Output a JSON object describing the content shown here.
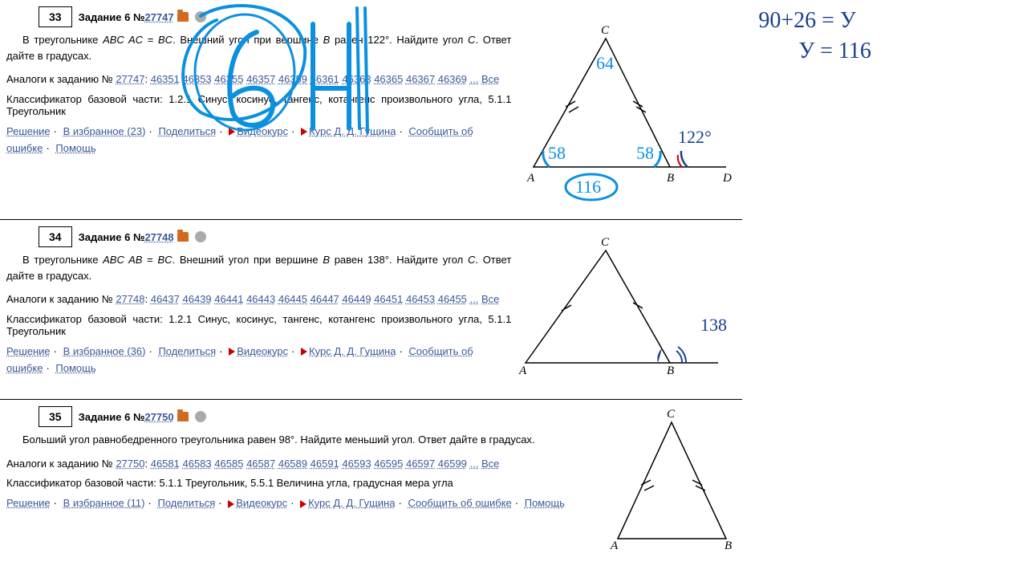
{
  "handwriting_right": {
    "line1": "90+26 = У",
    "line2": "У = 116",
    "color": "#1a3e8c"
  },
  "tasks": [
    {
      "num": "33",
      "label": "Задание 6 № ",
      "id": "27747",
      "text_html": "В треугольнике <i>ABC AC</i> = <i>BC</i>. Внешний угол при вершине <i>B</i> равен 122°. Найдите угол <i>C</i>. Ответ дайте в градусах.",
      "analogs_prefix": "Аналоги к заданию № ",
      "analogs_main": "27747",
      "analogs_list": [
        "46351",
        "46353",
        "46355",
        "46357",
        "46359",
        "46361",
        "46363",
        "46365",
        "46367",
        "46369"
      ],
      "analogs_more": "...",
      "analogs_all": "Все",
      "classif": "Классификатор базовой части: 1.2.1 Синус, косинус, тангенс, котангенс произвольного угла, 5.1.1 Треугольник",
      "links": {
        "solve": "Решение",
        "fav": "В избранное (23)",
        "share": "Поделиться",
        "video": "Видеокурс",
        "course": "Курс Д. Д. Гущина",
        "error": "Сообщить об ошибке",
        "help": "Помощь"
      },
      "figure": {
        "type": "triangle-ext",
        "A": "A",
        "B": "B",
        "C": "C",
        "D": "D",
        "angle_top": "64",
        "angle_left": "58",
        "angle_right": "58",
        "ext_angle": "122°",
        "bottom_sum": "116"
      },
      "scribble": "64"
    },
    {
      "num": "34",
      "label": "Задание 6 № ",
      "id": "27748",
      "text_html": "В треугольнике <i>ABC AB</i> = <i>BC</i>. Внешний угол при вершине <i>B</i> равен 138°. Найдите угол <i>C</i>. Ответ дайте в градусах.",
      "analogs_prefix": "Аналоги к заданию № ",
      "analogs_main": "27748",
      "analogs_list": [
        "46437",
        "46439",
        "46441",
        "46443",
        "46445",
        "46447",
        "46449",
        "46451",
        "46453",
        "46455"
      ],
      "analogs_more": "...",
      "analogs_all": "Все",
      "classif": "Классификатор базовой части: 1.2.1 Синус, косинус, тангенс, котангенс произвольного угла, 5.1.1 Треугольник",
      "links": {
        "solve": "Решение",
        "fav": "В избранное (36)",
        "share": "Поделиться",
        "video": "Видеокурс",
        "course": "Курс Д. Д. Гущина",
        "error": "Сообщить об ошибке",
        "help": "Помощь"
      },
      "figure": {
        "type": "triangle-ext2",
        "A": "A",
        "B": "B",
        "C": "C",
        "ext_angle": "138"
      }
    },
    {
      "num": "35",
      "label": "Задание 6 № ",
      "id": "27750",
      "text_html": "Больший угол равнобедренного треугольника равен 98°. Найдите меньший угол. Ответ дайте в градусах.",
      "analogs_prefix": "Аналоги к заданию № ",
      "analogs_main": "27750",
      "analogs_list": [
        "46581",
        "46583",
        "46585",
        "46587",
        "46589",
        "46591",
        "46593",
        "46595",
        "46597",
        "46599"
      ],
      "analogs_more": "...",
      "analogs_all": "Все",
      "classif": "Классификатор базовой части: 5.1.1 Треугольник, 5.5.1 Величина угла, градусная мера угла",
      "links": {
        "solve": "Решение",
        "fav": "В избранное (11)",
        "share": "Поделиться",
        "video": "Видеокурс",
        "course": "Курс Д. Д. Гущина",
        "error": "Сообщить об ошибке",
        "help": "Помощь"
      },
      "figure": {
        "type": "iso-triangle",
        "A": "A",
        "B": "B",
        "C": "C"
      }
    }
  ],
  "colors": {
    "link": "#3b5998",
    "red": "#c00",
    "hand_blue": "#0b90e0",
    "hand_navy": "#1a3e8c"
  }
}
